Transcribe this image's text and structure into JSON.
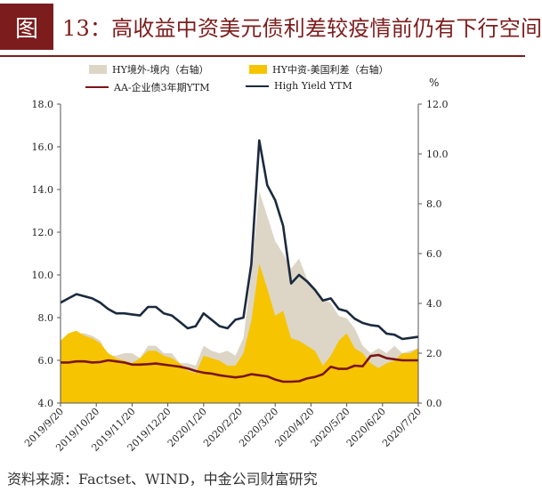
{
  "figure": {
    "badge": "图",
    "title": "13：高收益中资美元债利差较疫情前仍有下行空间",
    "unit_right": "%",
    "source": "资料来源：Factset、WIND，中金公司财富研究"
  },
  "colors": {
    "title": "#7d1c1c",
    "hy_offshore_onshore": "#ddd6c6",
    "hy_china_us": "#f6c400",
    "aa_corp": "#7a1518",
    "high_yield_ytm": "#1b2a3d"
  },
  "chart_data": {
    "type": "line",
    "legend_position": "top",
    "grid": false,
    "x": [
      "2019/9/20",
      "2019/9/27",
      "2019/10/4",
      "2019/10/11",
      "2019/10/18",
      "2019/10/25",
      "2019/11/1",
      "2019/11/8",
      "2019/11/15",
      "2019/11/22",
      "2019/11/29",
      "2019/12/6",
      "2019/12/13",
      "2019/12/20",
      "2019/12/27",
      "2020/1/3",
      "2020/1/10",
      "2020/1/17",
      "2020/1/24",
      "2020/1/31",
      "2020/2/7",
      "2020/2/14",
      "2020/2/21",
      "2020/2/28",
      "2020/3/6",
      "2020/3/13",
      "2020/3/20",
      "2020/3/27",
      "2020/4/3",
      "2020/4/10",
      "2020/4/17",
      "2020/4/24",
      "2020/5/1",
      "2020/5/8",
      "2020/5/15",
      "2020/5/22",
      "2020/5/29",
      "2020/6/5",
      "2020/6/12",
      "2020/6/19",
      "2020/6/26",
      "2020/7/3",
      "2020/7/10",
      "2020/7/17",
      "2020/7/24",
      "2020/7/31"
    ],
    "x_tick_labels": [
      "2019/9/20",
      "2019/10/20",
      "2019/11/20",
      "2019/12/20",
      "2020/1/20",
      "2020/2/20",
      "2020/3/20",
      "2020/4/20",
      "2020/5/20",
      "2020/6/20",
      "2020/7/20"
    ],
    "y_left": {
      "min": 4.0,
      "max": 18.0,
      "ticks": [
        "4.0",
        "6.0",
        "8.0",
        "10.0",
        "12.0",
        "14.0",
        "16.0",
        "18.0"
      ]
    },
    "y_right": {
      "min": 0.0,
      "max": 12.0,
      "ticks": [
        "0.0",
        "2.0",
        "4.0",
        "6.0",
        "8.0",
        "10.0",
        "12.0"
      ]
    },
    "series": [
      {
        "name": "HY境外-境内（右轴）",
        "axis": "right",
        "kind": "area",
        "values": [
          2.4,
          2.6,
          2.8,
          2.8,
          2.7,
          2.5,
          1.9,
          1.9,
          2.0,
          2.0,
          1.8,
          2.3,
          2.3,
          2.0,
          2.0,
          1.6,
          1.6,
          1.5,
          2.3,
          2.1,
          2.0,
          2.1,
          1.9,
          2.6,
          5.2,
          8.5,
          7.5,
          6.5,
          6.0,
          5.4,
          5.8,
          5.0,
          4.6,
          4.2,
          4.0,
          3.5,
          3.4,
          3.0,
          2.3,
          2.0,
          2.2,
          2.0,
          2.3,
          2.0,
          2.1,
          2.2
        ]
      },
      {
        "name": "HY中资-美国利差（右轴）",
        "axis": "right",
        "kind": "area",
        "values": [
          2.5,
          2.8,
          2.9,
          2.7,
          2.6,
          2.4,
          2.0,
          1.8,
          1.7,
          1.6,
          1.8,
          2.1,
          2.1,
          1.9,
          1.8,
          1.6,
          1.3,
          1.2,
          1.9,
          1.8,
          1.7,
          1.5,
          1.5,
          2.0,
          3.3,
          5.6,
          4.6,
          3.5,
          3.7,
          2.6,
          2.5,
          2.3,
          2.1,
          1.5,
          1.9,
          2.5,
          2.8,
          2.2,
          2.0,
          1.6,
          1.4,
          1.6,
          1.7,
          2.0,
          2.0,
          2.2
        ]
      },
      {
        "name": "AA-企业债3年期YTM",
        "axis": "left",
        "kind": "line",
        "values": [
          5.9,
          5.9,
          5.95,
          5.95,
          5.9,
          5.92,
          6.0,
          5.95,
          5.9,
          5.8,
          5.8,
          5.82,
          5.85,
          5.8,
          5.75,
          5.7,
          5.62,
          5.5,
          5.42,
          5.38,
          5.3,
          5.25,
          5.2,
          5.25,
          5.35,
          5.3,
          5.25,
          5.1,
          5.0,
          5.0,
          5.02,
          5.15,
          5.22,
          5.35,
          5.7,
          5.6,
          5.6,
          5.75,
          5.72,
          6.2,
          6.25,
          6.1,
          6.05,
          6.0,
          6.0,
          6.0
        ]
      },
      {
        "name": "High Yield YTM",
        "axis": "left",
        "kind": "line",
        "values": [
          8.7,
          8.9,
          9.1,
          9.0,
          8.9,
          8.7,
          8.4,
          8.2,
          8.2,
          8.15,
          8.1,
          8.5,
          8.5,
          8.2,
          8.1,
          7.8,
          7.5,
          7.6,
          8.2,
          7.9,
          7.6,
          7.5,
          7.9,
          8.0,
          10.5,
          16.3,
          14.2,
          13.5,
          12.3,
          9.6,
          10.0,
          9.7,
          9.3,
          8.8,
          8.9,
          8.4,
          8.3,
          7.95,
          7.75,
          7.65,
          7.6,
          7.25,
          7.2,
          7.0,
          7.05,
          7.1
        ]
      }
    ]
  }
}
